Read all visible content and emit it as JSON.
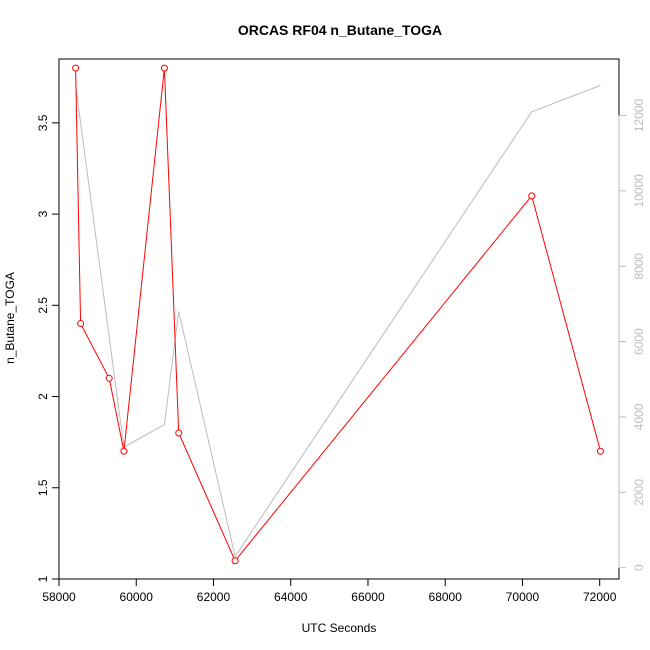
{
  "chart_data": {
    "type": "line",
    "title": "ORCAS RF04 n_Butane_TOGA",
    "xlabel": "UTC Seconds",
    "ylabel": "n_Butane_TOGA",
    "xlim": [
      58000,
      72500
    ],
    "ylim": [
      1.0,
      3.85
    ],
    "y2lim": [
      -300,
      13500
    ],
    "x_ticks": [
      58000,
      60000,
      62000,
      64000,
      66000,
      68000,
      70000,
      72000
    ],
    "y_ticks": [
      1.0,
      1.5,
      2.0,
      2.5,
      3.0,
      3.5
    ],
    "y2_ticks": [
      0,
      2000,
      4000,
      6000,
      8000,
      10000,
      12000
    ],
    "grid": false,
    "series": [
      {
        "axis": "left",
        "color": "#ff0000",
        "markers": true,
        "x": [
          58430,
          58560,
          59300,
          59680,
          60730,
          61100,
          62560,
          70240,
          72020
        ],
        "y": [
          3.8,
          2.4,
          2.1,
          1.7,
          3.8,
          1.8,
          1.1,
          3.1,
          1.7
        ]
      },
      {
        "axis": "right",
        "color": "#bdbdbd",
        "markers": false,
        "x": [
          58430,
          59680,
          60730,
          61100,
          62560,
          70240,
          72020
        ],
        "y": [
          12800,
          3200,
          3800,
          6800,
          300,
          12100,
          12800
        ]
      }
    ]
  }
}
